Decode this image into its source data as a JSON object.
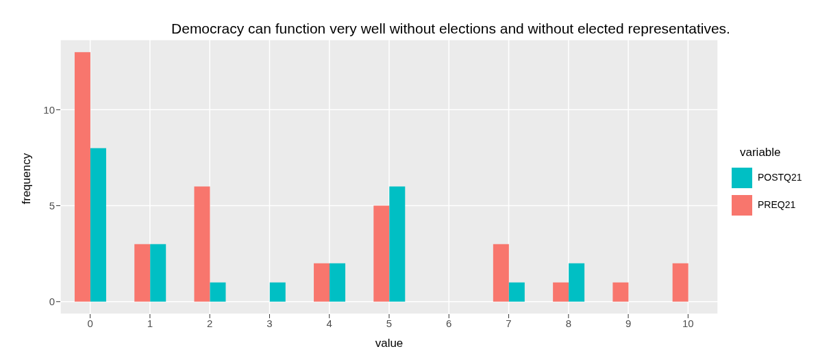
{
  "chart_data": {
    "type": "bar",
    "title": "Democracy can function very well without elections and without elected representatives.",
    "xlabel": "value",
    "ylabel": "frequency",
    "legend_title": "variable",
    "categories": [
      "0",
      "1",
      "2",
      "3",
      "4",
      "5",
      "6",
      "7",
      "8",
      "9",
      "10"
    ],
    "series": [
      {
        "name": "PREQ21",
        "color": "#f8766d",
        "values": [
          13,
          3,
          6,
          null,
          2,
          5,
          null,
          3,
          1,
          1,
          2
        ]
      },
      {
        "name": "POSTQ21",
        "color": "#00bfc4",
        "values": [
          8,
          3,
          1,
          1,
          2,
          6,
          null,
          1,
          2,
          null,
          null
        ]
      }
    ],
    "ylim": [
      -0.65,
      13.65
    ],
    "yticks": [
      0,
      5,
      10
    ],
    "grid": true,
    "legend": "right"
  }
}
